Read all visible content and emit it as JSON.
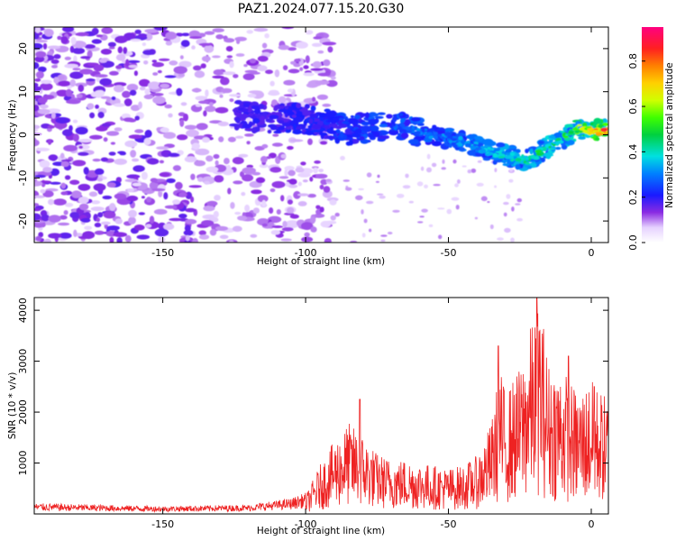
{
  "title": "PAZ1.2024.077.15.20.G30",
  "colors": {
    "snr_line": "#ee2222",
    "spectrogram_ridge": "rainbow",
    "background": "#ffffff"
  },
  "chart_data": [
    {
      "type": "heatmap",
      "title": "PAZ1.2024.077.15.20.G30",
      "xlabel": "Height of straight line (km)",
      "ylabel": "Frequency (Hz)",
      "xlim": [
        -195,
        6
      ],
      "ylim": [
        -25,
        25
      ],
      "xticks": [
        -150,
        -100,
        -50,
        0
      ],
      "xtick_labels": [
        "-150",
        "-100",
        "-50",
        "0"
      ],
      "yticks": [
        20,
        10,
        0,
        -10,
        -20
      ],
      "ytick_labels": [
        "20",
        "10",
        "0",
        "-10",
        "-20"
      ],
      "colorbar": {
        "label": "Normalized spectral amplitude",
        "range": [
          0,
          0.95
        ],
        "ticks": [
          0.0,
          0.2,
          0.4,
          0.6,
          0.8
        ],
        "tick_labels": [
          "0.0",
          "0.2",
          "0.4",
          "0.6",
          "0.8"
        ],
        "colormap": "rainbow"
      },
      "ridge": {
        "x": [
          -125,
          -115,
          -105,
          -95,
          -85,
          -75,
          -65,
          -55,
          -45,
          -35,
          -28,
          -22,
          -18,
          -12,
          -8,
          -4,
          0,
          5
        ],
        "y": [
          5,
          3.5,
          4,
          3,
          1,
          2,
          1.5,
          0,
          -1.5,
          -4,
          -5,
          -6,
          -4,
          -2,
          0,
          1.5,
          1,
          1
        ],
        "peak_amplitude": [
          0.15,
          0.18,
          0.2,
          0.22,
          0.28,
          0.32,
          0.33,
          0.35,
          0.38,
          0.42,
          0.46,
          0.5,
          0.55,
          0.5,
          0.6,
          0.7,
          0.85,
          0.95
        ]
      },
      "grid": false
    },
    {
      "type": "line",
      "xlabel": "Height of straight line (km)",
      "ylabel": "SNR (10 * v/v)",
      "xlim": [
        -195,
        6
      ],
      "ylim": [
        0,
        4250
      ],
      "xticks": [
        -150,
        -100,
        -50,
        0
      ],
      "xtick_labels": [
        "-150",
        "-100",
        "-50",
        "0"
      ],
      "yticks": [
        1000,
        2000,
        3000,
        4000
      ],
      "ytick_labels": [
        "1000",
        "2000",
        "3000",
        "4000"
      ],
      "envelope": {
        "x": [
          -195,
          -150,
          -120,
          -105,
          -100,
          -95,
          -90,
          -85,
          -80,
          -75,
          -70,
          -65,
          -60,
          -55,
          -50,
          -45,
          -40,
          -35,
          -32,
          -30,
          -25,
          -20,
          -18,
          -15,
          -10,
          -5,
          0,
          6
        ],
        "y": [
          150,
          110,
          130,
          220,
          300,
          800,
          1200,
          1500,
          1300,
          1000,
          900,
          900,
          850,
          800,
          750,
          800,
          950,
          1500,
          2400,
          2000,
          2400,
          3300,
          3600,
          2500,
          2400,
          2000,
          2200,
          1900
        ]
      },
      "peaks": [
        {
          "x": -32.5,
          "y": 3300
        },
        {
          "x": -19,
          "y": 4250
        },
        {
          "x": -8,
          "y": 3100
        },
        {
          "x": -81,
          "y": 2250
        },
        {
          "x": 1,
          "y": 2500
        }
      ],
      "grid": false
    }
  ]
}
